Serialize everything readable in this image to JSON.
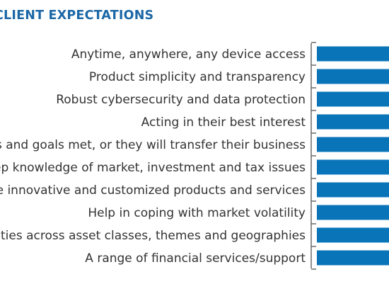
{
  "chart_data": {
    "type": "bar",
    "orientation": "horizontal",
    "title": "CLIENT EXPECTATIONS",
    "categories": [
      "Anytime, anywhere, any device access",
      "Product simplicity and transparency",
      "Robust cybersecurity and data protection",
      "Acting in their best interest",
      "Have their needs and goals met, or they will transfer their business",
      "Deep knowledge of market, investment and tax issues",
      "More innovative and customized products and services",
      "Help in coping with market volatility",
      "Opportunities across asset classes, themes and geographies",
      "A range of financial services/support"
    ],
    "values": [
      null,
      null,
      null,
      null,
      null,
      null,
      null,
      null,
      null,
      null
    ],
    "colors": {
      "bar": "#0a74b9",
      "title": "#1b67a6",
      "label": "#333333",
      "axis": "#555555"
    },
    "grid": false,
    "legend": "none",
    "xlabel": "",
    "ylabel": ""
  }
}
